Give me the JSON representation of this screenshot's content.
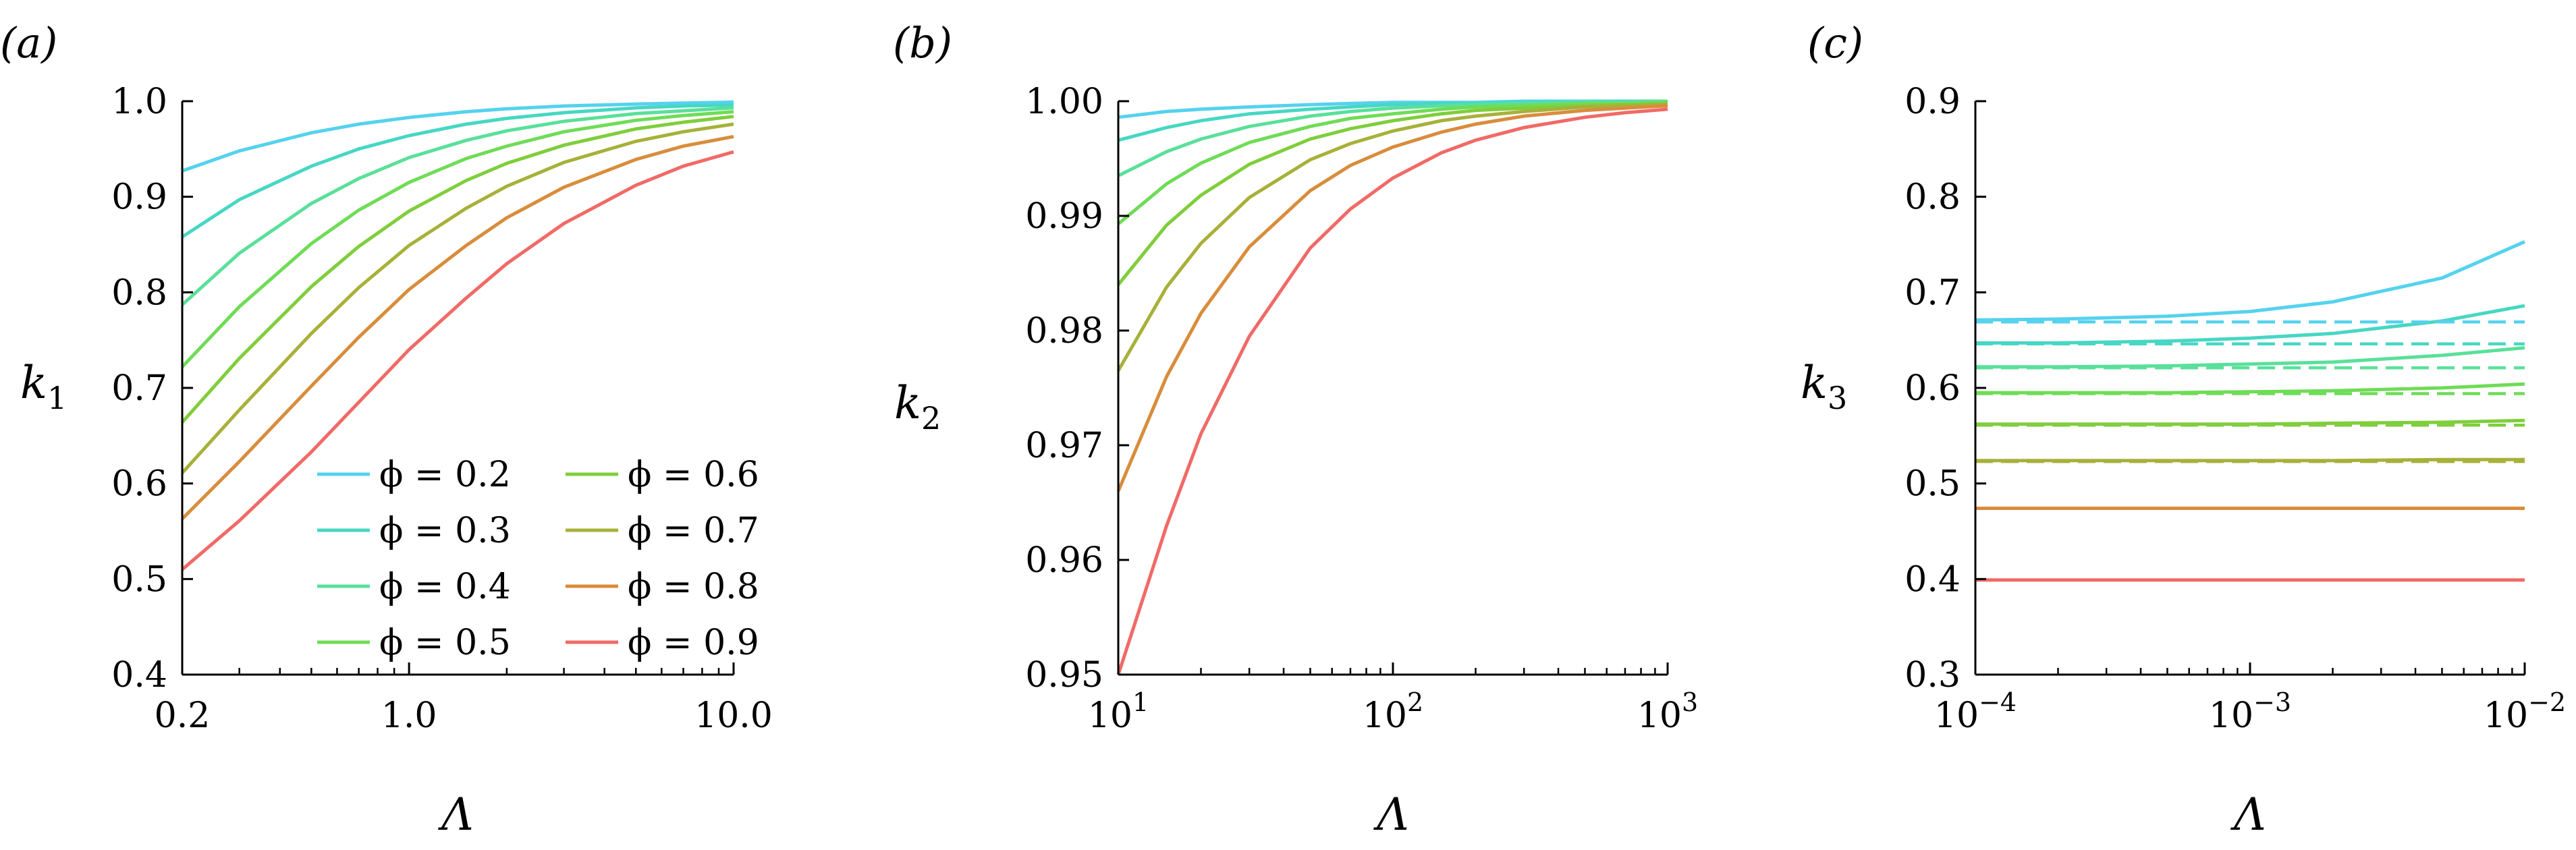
{
  "colors": {
    "0.2": "#55d2ee",
    "0.3": "#47d7c4",
    "0.4": "#59e09a",
    "0.5": "#6fdc57",
    "0.6": "#7fce3c",
    "0.7": "#a7b13a",
    "0.8": "#d88d3c",
    "0.9": "#f06a66"
  },
  "legend": {
    "entries": [
      {
        "phi": "0.2",
        "label": "ϕ = 0.2"
      },
      {
        "phi": "0.3",
        "label": "ϕ = 0.3"
      },
      {
        "phi": "0.4",
        "label": "ϕ = 0.4"
      },
      {
        "phi": "0.5",
        "label": "ϕ = 0.5"
      },
      {
        "phi": "0.6",
        "label": "ϕ = 0.6"
      },
      {
        "phi": "0.7",
        "label": "ϕ = 0.7"
      },
      {
        "phi": "0.8",
        "label": "ϕ = 0.8"
      },
      {
        "phi": "0.9",
        "label": "ϕ = 0.9"
      }
    ],
    "placement": "lower-right of panel (a)"
  },
  "chart_data": [
    {
      "type": "line",
      "panel_label": "(a)",
      "xlabel": "Λ",
      "ylabel": "k₁",
      "xscale": "log",
      "xlim": [
        0.2,
        10.0
      ],
      "ylim": [
        0.4,
        1.0
      ],
      "xticks": [
        {
          "value": 0.2,
          "label": "0.2"
        },
        {
          "value": 1.0,
          "label": "1.0"
        },
        {
          "value": 10.0,
          "label": "10.0"
        }
      ],
      "yticks": [
        {
          "value": 0.4,
          "label": "0.4"
        },
        {
          "value": 0.5,
          "label": "0.5"
        },
        {
          "value": 0.6,
          "label": "0.6"
        },
        {
          "value": 0.7,
          "label": "0.7"
        },
        {
          "value": 0.8,
          "label": "0.8"
        },
        {
          "value": 0.9,
          "label": "0.9"
        },
        {
          "value": 1.0,
          "label": "1.0"
        }
      ],
      "x": [
        0.2,
        0.3,
        0.5,
        0.7,
        1.0,
        1.5,
        2.0,
        3.0,
        5.0,
        7.0,
        10.0
      ],
      "series": [
        {
          "phi": "0.2",
          "values": [
            0.927,
            0.948,
            0.967,
            0.976,
            0.983,
            0.989,
            0.992,
            0.995,
            0.997,
            0.998,
            0.999
          ]
        },
        {
          "phi": "0.3",
          "values": [
            0.858,
            0.897,
            0.932,
            0.95,
            0.964,
            0.976,
            0.982,
            0.988,
            0.993,
            0.995,
            0.996
          ]
        },
        {
          "phi": "0.4",
          "values": [
            0.787,
            0.841,
            0.893,
            0.919,
            0.941,
            0.959,
            0.969,
            0.979,
            0.987,
            0.99,
            0.993
          ]
        },
        {
          "phi": "0.5",
          "values": [
            0.722,
            0.785,
            0.851,
            0.886,
            0.915,
            0.94,
            0.953,
            0.968,
            0.98,
            0.985,
            0.989
          ]
        },
        {
          "phi": "0.6",
          "values": [
            0.664,
            0.731,
            0.806,
            0.848,
            0.885,
            0.917,
            0.935,
            0.954,
            0.971,
            0.978,
            0.984
          ]
        },
        {
          "phi": "0.7",
          "values": [
            0.611,
            0.677,
            0.757,
            0.805,
            0.849,
            0.888,
            0.911,
            0.936,
            0.958,
            0.968,
            0.976
          ]
        },
        {
          "phi": "0.8",
          "values": [
            0.563,
            0.623,
            0.702,
            0.753,
            0.803,
            0.849,
            0.878,
            0.91,
            0.939,
            0.953,
            0.963
          ]
        },
        {
          "phi": "0.9",
          "values": [
            0.51,
            0.561,
            0.633,
            0.685,
            0.74,
            0.794,
            0.83,
            0.872,
            0.912,
            0.932,
            0.947
          ]
        }
      ]
    },
    {
      "type": "line",
      "panel_label": "(b)",
      "xlabel": "Λ",
      "ylabel": "k₂",
      "xscale": "log",
      "xlim": [
        10,
        1000
      ],
      "ylim": [
        0.95,
        1.0
      ],
      "xticks": [
        {
          "value": 10,
          "base": "10",
          "exp": "1"
        },
        {
          "value": 100,
          "base": "10",
          "exp": "2"
        },
        {
          "value": 1000,
          "base": "10",
          "exp": "3"
        }
      ],
      "yticks": [
        {
          "value": 0.95,
          "label": "0.95"
        },
        {
          "value": 0.96,
          "label": "0.96"
        },
        {
          "value": 0.97,
          "label": "0.97"
        },
        {
          "value": 0.98,
          "label": "0.98"
        },
        {
          "value": 0.99,
          "label": "0.99"
        },
        {
          "value": 1.0,
          "label": "1.00"
        }
      ],
      "x": [
        10,
        15,
        20,
        30,
        50,
        70,
        100,
        150,
        200,
        300,
        500,
        700,
        1000
      ],
      "series": [
        {
          "phi": "0.2",
          "values": [
            0.9986,
            0.9991,
            0.9993,
            0.9995,
            0.9997,
            0.9998,
            0.9999,
            0.9999,
            0.9999,
            1.0,
            1.0,
            1.0,
            1.0
          ]
        },
        {
          "phi": "0.3",
          "values": [
            0.9966,
            0.9977,
            0.9983,
            0.9989,
            0.9993,
            0.9995,
            0.9997,
            0.9998,
            0.9998,
            0.9999,
            0.9999,
            1.0,
            1.0
          ]
        },
        {
          "phi": "0.4",
          "values": [
            0.9935,
            0.9956,
            0.9967,
            0.9978,
            0.9987,
            0.9991,
            0.9994,
            0.9996,
            0.9997,
            0.9998,
            0.9999,
            0.9999,
            1.0
          ]
        },
        {
          "phi": "0.5",
          "values": [
            0.9893,
            0.9928,
            0.9946,
            0.9964,
            0.9978,
            0.9985,
            0.9989,
            0.9993,
            0.9995,
            0.9996,
            0.9998,
            0.9998,
            0.9999
          ]
        },
        {
          "phi": "0.6",
          "values": [
            0.984,
            0.9892,
            0.9918,
            0.9945,
            0.9967,
            0.9976,
            0.9983,
            0.9989,
            0.9992,
            0.9994,
            0.9996,
            0.9997,
            0.9998
          ]
        },
        {
          "phi": "0.7",
          "values": [
            0.9765,
            0.9838,
            0.9876,
            0.9916,
            0.9949,
            0.9963,
            0.9974,
            0.9983,
            0.9987,
            0.9991,
            0.9995,
            0.9996,
            0.9997
          ]
        },
        {
          "phi": "0.8",
          "values": [
            0.966,
            0.976,
            0.9815,
            0.9873,
            0.9922,
            0.9944,
            0.996,
            0.9973,
            0.998,
            0.9987,
            0.9992,
            0.9994,
            0.9996
          ]
        },
        {
          "phi": "0.9",
          "values": [
            0.95,
            0.963,
            0.971,
            0.9795,
            0.9872,
            0.9906,
            0.9933,
            0.9955,
            0.9966,
            0.9977,
            0.9986,
            0.999,
            0.9993
          ]
        }
      ]
    },
    {
      "type": "line",
      "panel_label": "(c)",
      "xlabel": "Λ",
      "ylabel": "k₃",
      "xscale": "log",
      "xlim": [
        0.0001,
        0.01
      ],
      "ylim": [
        0.3,
        0.9
      ],
      "xticks": [
        {
          "value": 0.0001,
          "base": "10",
          "exp": "−4"
        },
        {
          "value": 0.001,
          "base": "10",
          "exp": "−3"
        },
        {
          "value": 0.01,
          "base": "10",
          "exp": "−2"
        }
      ],
      "yticks": [
        {
          "value": 0.3,
          "label": "0.3"
        },
        {
          "value": 0.4,
          "label": "0.4"
        },
        {
          "value": 0.5,
          "label": "0.5"
        },
        {
          "value": 0.6,
          "label": "0.6"
        },
        {
          "value": 0.7,
          "label": "0.7"
        },
        {
          "value": 0.8,
          "label": "0.8"
        },
        {
          "value": 0.9,
          "label": "0.9"
        }
      ],
      "x": [
        0.0001,
        0.0002,
        0.0005,
        0.001,
        0.002,
        0.005,
        0.01
      ],
      "series": [
        {
          "phi": "0.2",
          "style": "solid",
          "values": [
            0.671,
            0.672,
            0.675,
            0.68,
            0.69,
            0.715,
            0.753
          ]
        },
        {
          "phi": "0.3",
          "style": "solid",
          "values": [
            0.647,
            0.647,
            0.649,
            0.652,
            0.657,
            0.67,
            0.686
          ]
        },
        {
          "phi": "0.4",
          "style": "solid",
          "values": [
            0.622,
            0.622,
            0.623,
            0.625,
            0.627,
            0.634,
            0.642
          ]
        },
        {
          "phi": "0.5",
          "style": "solid",
          "values": [
            0.595,
            0.595,
            0.595,
            0.596,
            0.597,
            0.6,
            0.604
          ]
        },
        {
          "phi": "0.6",
          "style": "solid",
          "values": [
            0.562,
            0.562,
            0.562,
            0.562,
            0.563,
            0.564,
            0.566
          ]
        },
        {
          "phi": "0.7",
          "style": "solid",
          "values": [
            0.524,
            0.524,
            0.524,
            0.524,
            0.524,
            0.525,
            0.525
          ]
        },
        {
          "phi": "0.8",
          "style": "solid",
          "values": [
            0.474,
            0.474,
            0.474,
            0.474,
            0.474,
            0.474,
            0.474
          ]
        },
        {
          "phi": "0.9",
          "style": "solid",
          "values": [
            0.399,
            0.399,
            0.399,
            0.399,
            0.399,
            0.399,
            0.399
          ]
        },
        {
          "phi": "0.2",
          "style": "dashed",
          "values": [
            0.669,
            0.669,
            0.669,
            0.669,
            0.669,
            0.669,
            0.669
          ]
        },
        {
          "phi": "0.3",
          "style": "dashed",
          "values": [
            0.646,
            0.646,
            0.646,
            0.646,
            0.646,
            0.646,
            0.646
          ]
        },
        {
          "phi": "0.4",
          "style": "dashed",
          "values": [
            0.621,
            0.621,
            0.621,
            0.621,
            0.621,
            0.621,
            0.621
          ]
        },
        {
          "phi": "0.5",
          "style": "dashed",
          "values": [
            0.594,
            0.594,
            0.594,
            0.594,
            0.594,
            0.594,
            0.594
          ]
        },
        {
          "phi": "0.6",
          "style": "dashed",
          "values": [
            0.561,
            0.561,
            0.561,
            0.561,
            0.561,
            0.561,
            0.561
          ]
        },
        {
          "phi": "0.7",
          "style": "dashed",
          "values": [
            0.523,
            0.523,
            0.523,
            0.523,
            0.523,
            0.523,
            0.523
          ]
        },
        {
          "phi": "0.8",
          "style": "dashed",
          "values": [
            0.474,
            0.474,
            0.474,
            0.474,
            0.474,
            0.474,
            0.474
          ]
        },
        {
          "phi": "0.9",
          "style": "dashed",
          "values": [
            0.399,
            0.399,
            0.399,
            0.399,
            0.399,
            0.399,
            0.399
          ]
        }
      ]
    }
  ]
}
